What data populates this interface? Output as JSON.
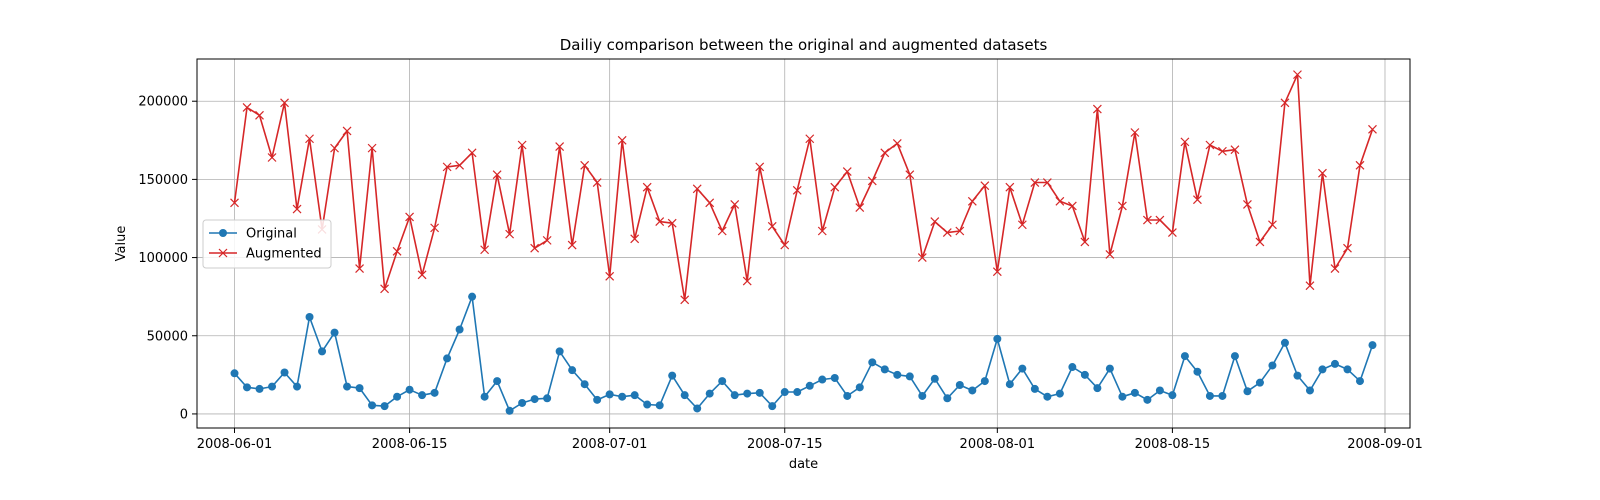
{
  "chart_data": {
    "type": "line",
    "title": "Dailiy comparison between the original and augmented datasets",
    "xlabel": "date",
    "ylabel": "Value",
    "x_start": "2008-06-01",
    "x_end": "2008-08-31",
    "xlim": [
      "2008-05-29",
      "2008-09-03"
    ],
    "ylim": [
      -9000,
      227000
    ],
    "grid": true,
    "legend_position": "center-left",
    "x_ticks": [
      {
        "date": "2008-06-01",
        "label": "2008-06-01"
      },
      {
        "date": "2008-06-15",
        "label": "2008-06-15"
      },
      {
        "date": "2008-07-01",
        "label": "2008-07-01"
      },
      {
        "date": "2008-07-15",
        "label": "2008-07-15"
      },
      {
        "date": "2008-08-01",
        "label": "2008-08-01"
      },
      {
        "date": "2008-08-15",
        "label": "2008-08-15"
      },
      {
        "date": "2008-09-01",
        "label": "2008-09-01"
      }
    ],
    "y_ticks": [
      {
        "value": 0,
        "label": "0"
      },
      {
        "value": 50000,
        "label": "50000"
      },
      {
        "value": 100000,
        "label": "100000"
      },
      {
        "value": 150000,
        "label": "150000"
      },
      {
        "value": 200000,
        "label": "200000"
      }
    ],
    "series": [
      {
        "name": "Original",
        "color": "#1f77b4",
        "marker": "circle",
        "values": [
          26000,
          17000,
          16000,
          17500,
          26500,
          17500,
          62000,
          40000,
          52000,
          17500,
          16500,
          5500,
          5000,
          11000,
          15500,
          12000,
          13500,
          35500,
          54000,
          75000,
          11000,
          21000,
          2000,
          7000,
          9500,
          10000,
          40000,
          28000,
          19000,
          9000,
          12500,
          11000,
          12000,
          6000,
          5500,
          24500,
          12000,
          3500,
          13000,
          21000,
          12000,
          13000,
          13500,
          5000,
          14000,
          14000,
          18000,
          22000,
          23000,
          11500,
          17000,
          33000,
          28500,
          25000,
          24000,
          11500,
          22500,
          10000,
          18500,
          15000,
          21000,
          48000,
          19000,
          29000,
          16000,
          11000,
          13000,
          30000,
          25000,
          16500,
          29000,
          11000,
          13500,
          9000,
          15000,
          12000,
          37000,
          27000,
          11500,
          11500,
          37000,
          14500,
          20000,
          31000,
          45500,
          24500,
          15000,
          28500,
          32000,
          28500,
          21000,
          44000
        ]
      },
      {
        "name": "Augmented",
        "color": "#d62728",
        "marker": "x",
        "values": [
          135000,
          196000,
          191000,
          164000,
          199000,
          131000,
          176000,
          118000,
          170000,
          181000,
          93000,
          170000,
          80000,
          104000,
          126000,
          89000,
          119000,
          158000,
          159000,
          167000,
          105000,
          153000,
          115000,
          172000,
          106000,
          111000,
          171000,
          108000,
          159000,
          148000,
          88000,
          175000,
          112000,
          145000,
          123000,
          122000,
          73000,
          144000,
          135000,
          117000,
          134000,
          85000,
          158000,
          120000,
          108000,
          143000,
          176000,
          117000,
          145000,
          155000,
          132000,
          149000,
          167000,
          173000,
          153000,
          100000,
          123000,
          116000,
          117000,
          136000,
          146000,
          91000,
          145000,
          121000,
          148000,
          148000,
          136000,
          133000,
          110000,
          195000,
          102000,
          133000,
          180000,
          124000,
          124000,
          116000,
          174000,
          137000,
          172000,
          168000,
          169000,
          134000,
          110000,
          121000,
          199000,
          217000,
          82000,
          154000,
          93000,
          106000,
          159000,
          182000
        ]
      }
    ]
  }
}
